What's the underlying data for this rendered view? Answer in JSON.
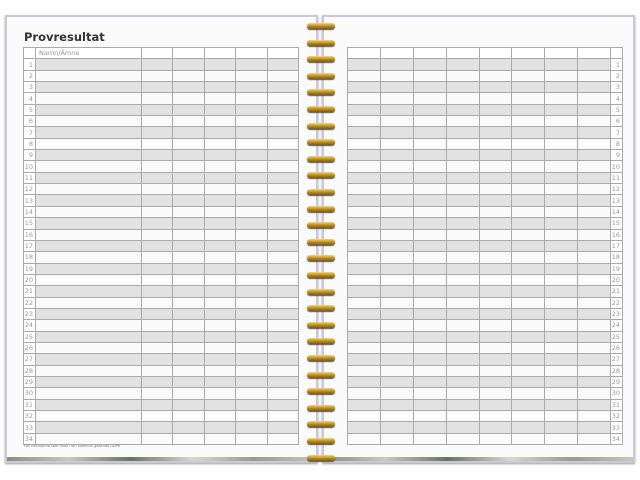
{
  "left_page": {
    "title": "Provresultat",
    "name_header": "Namn/Ämne",
    "footnote": "Följ riktlinjerna som finns i din kommun gällande GDPR"
  },
  "rows": 34,
  "left_extra_columns": 5,
  "right_columns": 8
}
